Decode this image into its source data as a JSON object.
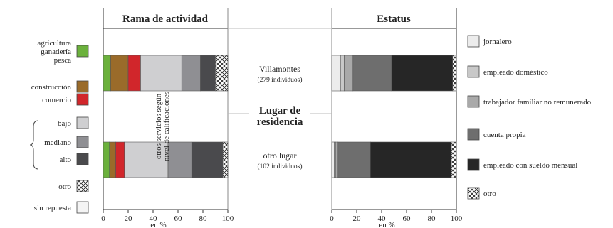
{
  "chart_data": {
    "type": "bar",
    "orientation": "horizontal",
    "stacked": true,
    "panels": [
      {
        "title": "Rama de actividad",
        "series": [
          {
            "key": "agri",
            "label": "agricultura\nganadería\npesca",
            "color": "#6bb13c",
            "pattern": null
          },
          {
            "key": "cons",
            "label": "construcción",
            "color": "#9a6b2a",
            "pattern": null
          },
          {
            "key": "com",
            "label": "comercio",
            "color": "#d1262b",
            "pattern": null
          },
          {
            "key": "bajo",
            "label": "bajo",
            "color": "#cfcfd1",
            "pattern": null
          },
          {
            "key": "med",
            "label": "mediano",
            "color": "#8f8f93",
            "pattern": null
          },
          {
            "key": "alto",
            "label": "alto",
            "color": "#4a4a4d",
            "pattern": null
          },
          {
            "key": "otro",
            "label": "otro",
            "color": "#ffffff",
            "pattern": "cross"
          },
          {
            "key": "sr",
            "label": "sin repuesta",
            "color": "#f4f4f4",
            "pattern": null
          }
        ],
        "group_label": "otros servicios según\nnivel de calificaciones",
        "rows": [
          {
            "segments": [
              6,
              14,
              10,
              33,
              15,
              12,
              10,
              0
            ]
          },
          {
            "segments": [
              5,
              5,
              7,
              35,
              19,
              25,
              4,
              0
            ]
          }
        ],
        "xlim": [
          0,
          100
        ],
        "ticks": [
          "0",
          "20",
          "40",
          "60",
          "80",
          "100"
        ],
        "xlabel": "en %"
      },
      {
        "title": "Estatus",
        "series": [
          {
            "key": "jor",
            "label": "jornalero",
            "color": "#ececec",
            "pattern": null
          },
          {
            "key": "dom",
            "label": "empleado doméstico",
            "color": "#c8c8c8",
            "pattern": null
          },
          {
            "key": "fam",
            "label": "trabajador familiar no remunerado",
            "color": "#a9a9a9",
            "pattern": null
          },
          {
            "key": "cp",
            "label": "cuenta propia",
            "color": "#6e6e6e",
            "pattern": null
          },
          {
            "key": "esm",
            "label": "empleado con sueldo mensual",
            "color": "#262626",
            "pattern": null
          },
          {
            "key": "otro",
            "label": "otro",
            "color": "#ffffff",
            "pattern": "cross"
          }
        ],
        "rows": [
          {
            "segments": [
              7,
              3,
              7,
              31,
              49,
              3
            ]
          },
          {
            "segments": [
              2,
              1,
              2,
              26,
              65,
              4
            ]
          }
        ],
        "xlim": [
          0,
          100
        ],
        "ticks": [
          "0",
          "20",
          "40",
          "60",
          "80",
          "100"
        ],
        "xlabel": "en %"
      }
    ],
    "row_labels": [
      {
        "name": "Villamontes",
        "sub": "(279 individuos)"
      },
      {
        "name": "otro lugar",
        "sub": "(102 individuos)"
      }
    ],
    "center_label": "Lugar de\nresidencia"
  }
}
